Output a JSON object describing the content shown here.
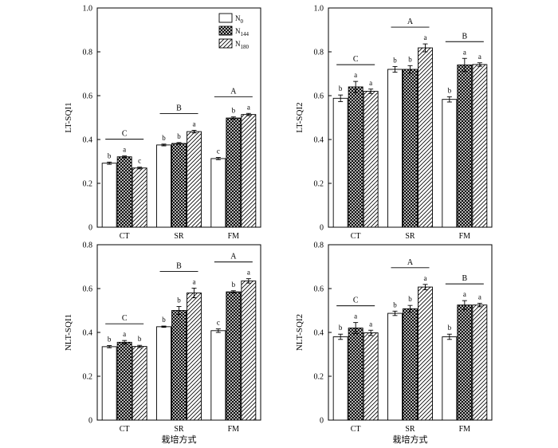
{
  "chart_data": [
    {
      "type": "bar",
      "panel": "top-left",
      "ylabel": "LT-SQI1",
      "xlabel": "",
      "ylim": [
        0,
        1.0
      ],
      "yticks": [
        "0",
        "0.2",
        "0.4",
        "0.6",
        "0.8",
        "1.0"
      ],
      "ytick_values": [
        0,
        0.2,
        0.4,
        0.6,
        0.8,
        1.0
      ],
      "categories": [
        "CT",
        "SR",
        "FM"
      ],
      "legend": {
        "position": "top-right",
        "entries": [
          {
            "base": "N",
            "sub": "0"
          },
          {
            "base": "N",
            "sub": "144"
          },
          {
            "base": "N",
            "sub": "180"
          }
        ]
      },
      "series": [
        {
          "name": "N0",
          "pattern": "blank",
          "values": [
            0.292,
            0.375,
            0.313
          ],
          "errors": [
            0.005,
            0.004,
            0.005
          ],
          "sig": [
            "b",
            "b",
            "c"
          ]
        },
        {
          "name": "N144",
          "pattern": "crosshatch",
          "values": [
            0.321,
            0.382,
            0.498
          ],
          "errors": [
            0.004,
            0.004,
            0.005
          ],
          "sig": [
            "a",
            "b",
            "b"
          ]
        },
        {
          "name": "N180",
          "pattern": "diagonal",
          "values": [
            0.27,
            0.436,
            0.514
          ],
          "errors": [
            0.004,
            0.006,
            0.005
          ],
          "sig": [
            "c",
            "a",
            "a"
          ]
        }
      ],
      "group_sig": [
        "C",
        "B",
        "A"
      ]
    },
    {
      "type": "bar",
      "panel": "top-right",
      "ylabel": "LT-SQI2",
      "xlabel": "",
      "ylim": [
        0,
        1.0
      ],
      "yticks": [
        "0",
        "0.2",
        "0.4",
        "0.6",
        "0.8",
        "1.0"
      ],
      "ytick_values": [
        0,
        0.2,
        0.4,
        0.6,
        0.8,
        1.0
      ],
      "categories": [
        "CT",
        "SR",
        "FM"
      ],
      "series": [
        {
          "name": "N0",
          "pattern": "blank",
          "values": [
            0.588,
            0.72,
            0.583
          ],
          "errors": [
            0.015,
            0.013,
            0.012
          ],
          "sig": [
            "b",
            "b",
            "b"
          ]
        },
        {
          "name": "N144",
          "pattern": "crosshatch",
          "values": [
            0.64,
            0.72,
            0.74
          ],
          "errors": [
            0.025,
            0.017,
            0.03
          ],
          "sig": [
            "a",
            "b",
            "a"
          ]
        },
        {
          "name": "N180",
          "pattern": "diagonal",
          "values": [
            0.62,
            0.818,
            0.742
          ],
          "errors": [
            0.01,
            0.018,
            0.008
          ],
          "sig": [
            "a",
            "a",
            "a"
          ]
        }
      ],
      "group_sig": [
        "C",
        "A",
        "B"
      ]
    },
    {
      "type": "bar",
      "panel": "bottom-left",
      "ylabel": "NLT-SQI1",
      "xlabel": "栽培方式",
      "ylim": [
        0,
        0.8
      ],
      "yticks": [
        "0",
        "0.2",
        "0.4",
        "0.6",
        "0.8"
      ],
      "ytick_values": [
        0,
        0.2,
        0.4,
        0.6,
        0.8
      ],
      "categories": [
        "CT",
        "SR",
        "FM"
      ],
      "series": [
        {
          "name": "N0",
          "pattern": "blank",
          "values": [
            0.335,
            0.426,
            0.408
          ],
          "errors": [
            0.005,
            0.003,
            0.008
          ],
          "sig": [
            "b",
            "b",
            "c"
          ]
        },
        {
          "name": "N144",
          "pattern": "crosshatch",
          "values": [
            0.355,
            0.5,
            0.585
          ],
          "errors": [
            0.008,
            0.018,
            0.005
          ],
          "sig": [
            "a",
            "b",
            "b"
          ]
        },
        {
          "name": "N180",
          "pattern": "diagonal",
          "values": [
            0.336,
            0.58,
            0.635
          ],
          "errors": [
            0.005,
            0.022,
            0.01
          ],
          "sig": [
            "b",
            "a",
            "a"
          ]
        }
      ],
      "group_sig": [
        "C",
        "B",
        "A"
      ]
    },
    {
      "type": "bar",
      "panel": "bottom-right",
      "ylabel": "NLT-SQI2",
      "xlabel": "栽培方式",
      "ylim": [
        0,
        0.8
      ],
      "yticks": [
        "0",
        "0.2",
        "0.4",
        "0.6",
        "0.8"
      ],
      "ytick_values": [
        0,
        0.2,
        0.4,
        0.6,
        0.8
      ],
      "categories": [
        "CT",
        "SR",
        "FM"
      ],
      "series": [
        {
          "name": "N0",
          "pattern": "blank",
          "values": [
            0.38,
            0.487,
            0.38
          ],
          "errors": [
            0.012,
            0.01,
            0.012
          ],
          "sig": [
            "b",
            "b",
            "b"
          ]
        },
        {
          "name": "N144",
          "pattern": "crosshatch",
          "values": [
            0.42,
            0.508,
            0.525
          ],
          "errors": [
            0.025,
            0.015,
            0.02
          ],
          "sig": [
            "a",
            "b",
            "a"
          ]
        },
        {
          "name": "N180",
          "pattern": "diagonal",
          "values": [
            0.398,
            0.607,
            0.525
          ],
          "errors": [
            0.012,
            0.012,
            0.008
          ],
          "sig": [
            "a",
            "a",
            "a"
          ]
        }
      ],
      "group_sig": [
        "C",
        "A",
        "B"
      ]
    }
  ]
}
